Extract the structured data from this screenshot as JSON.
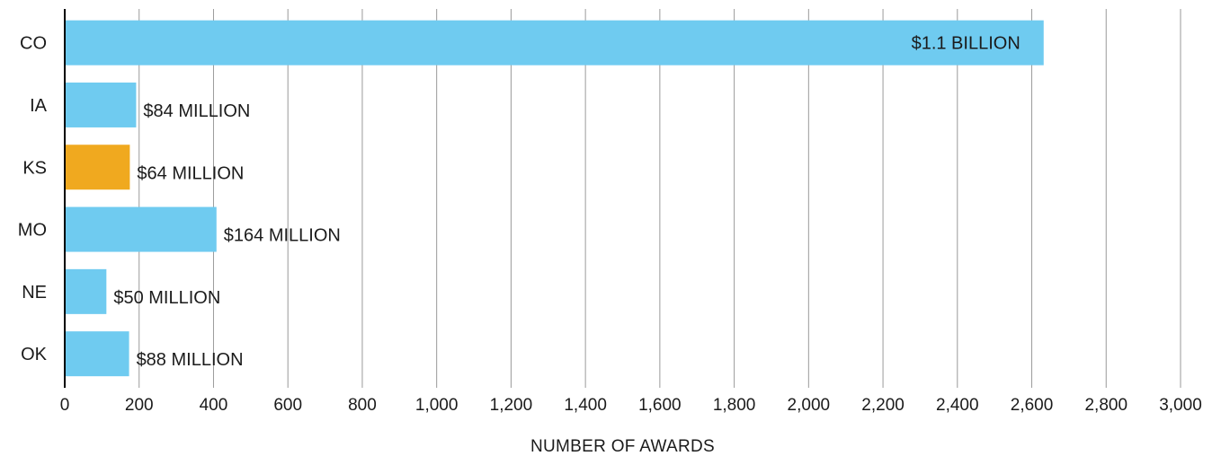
{
  "chart_data": {
    "type": "bar",
    "orientation": "horizontal",
    "categories": [
      "CO",
      "IA",
      "KS",
      "MO",
      "NE",
      "OK"
    ],
    "values": [
      2632,
      192,
      175,
      408,
      112,
      173
    ],
    "bar_labels": [
      "$1.1 BILLION",
      "$84 MILLION",
      "$64 MILLION",
      "$164 MILLION",
      "$50 MILLION",
      "$88 MILLION"
    ],
    "bar_colors": [
      "#6fcbf0",
      "#6fcbf0",
      "#f0a91f",
      "#6fcbf0",
      "#6fcbf0",
      "#6fcbf0"
    ],
    "xlabel": "NUMBER OF AWARDS",
    "ylabel": "",
    "title": "",
    "xlim": [
      0,
      3000
    ],
    "xticks": [
      0,
      200,
      400,
      600,
      800,
      1000,
      1200,
      1400,
      1600,
      1800,
      2000,
      2200,
      2400,
      2600,
      2800,
      3000
    ],
    "xtick_labels": [
      "0",
      "200",
      "400",
      "600",
      "800",
      "1,000",
      "1,200",
      "1,400",
      "1,600",
      "1,800",
      "2,000",
      "2,200",
      "2,400",
      "2,600",
      "2,800",
      "3,000"
    ],
    "grid": "vertical",
    "legend": "none",
    "label_inside_bar_index": 0
  }
}
